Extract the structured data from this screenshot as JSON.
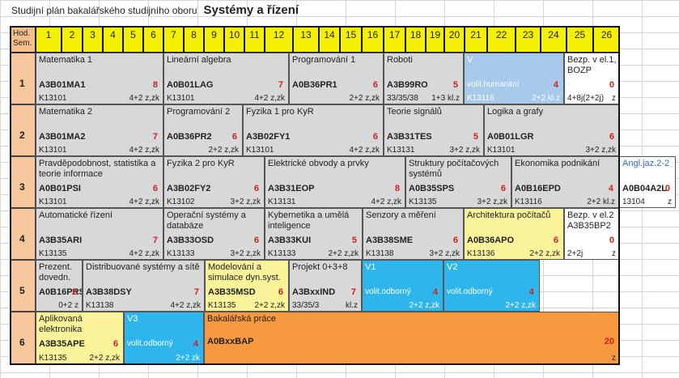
{
  "title": {
    "prefix": "Studijní plán bakalářského studijního oboru",
    "name": "Systémy a řízení"
  },
  "header": {
    "corner": "Hod.\nSem.",
    "columns": [
      "1",
      "2",
      "3",
      "4",
      "5",
      "6",
      "7",
      "8",
      "9",
      "10",
      "11",
      "12",
      "13",
      "14",
      "15",
      "16",
      "17",
      "18",
      "19",
      "20",
      "21",
      "22",
      "23",
      "24",
      "25",
      "26"
    ]
  },
  "semesters": [
    "1",
    "2",
    "3",
    "4",
    "5",
    "6"
  ],
  "courses": {
    "s1": [
      {
        "name": "Matematika 1",
        "code": "A3B01MA1",
        "credits": "8",
        "dept": "K13101",
        "hours": "4+2  z,zk"
      },
      {
        "name": "Lineární algebra",
        "code": "A0B01LAG",
        "credits": "7",
        "dept": "K13101",
        "hours": "4+2  z,zk"
      },
      {
        "name": "Programování 1",
        "code": "A0B36PR1",
        "credits": "6",
        "dept": "",
        "hours": "2+2  z,zk"
      },
      {
        "name": "Roboti",
        "code": "A3B99RO",
        "credits": "5",
        "dept": "33/35/38",
        "hours": "1+3  kl.z"
      },
      {
        "name": "V",
        "code": "volit.humanitní",
        "credits": "4",
        "dept": "K13116",
        "hours": "2+2       kl.z"
      },
      {
        "name": "Bezp. v el.1, BOZP",
        "code": "",
        "credits": "0",
        "dept": "4+8j(2+2j)",
        "hours": "z"
      }
    ],
    "s2": [
      {
        "name": "Matematika 2",
        "code": "A3B01MA2",
        "credits": "7",
        "dept": "K13101",
        "hours": "4+2  z,zk"
      },
      {
        "name": "Programování 2",
        "code": "A0B36PR2",
        "credits": "6",
        "dept": "",
        "hours": "2+2  z,zk"
      },
      {
        "name": "Fyzika 1 pro KyR",
        "code": "A3B02FY1",
        "credits": "6",
        "dept": "K13101",
        "hours": "4+2  z,zk"
      },
      {
        "name": "Teorie signálů",
        "code": "A3B31TES",
        "credits": "5",
        "dept": "K13131",
        "hours": "3+2  z,zk"
      },
      {
        "name": "Logika a grafy",
        "code": "A0B01LGR",
        "credits": "6",
        "dept": "K13101",
        "hours": "3+2  z,zk"
      }
    ],
    "s3": [
      {
        "name": "Pravděpodobnost, statistika a teorie informace",
        "code": "A0B01PSI",
        "credits": "6",
        "dept": "K13101",
        "hours": "4+2  z,zk"
      },
      {
        "name": "Fyzika 2 pro KyR",
        "code": "A3B02FY2",
        "credits": "6",
        "dept": "K13102",
        "hours": "3+2  z,zk"
      },
      {
        "name": "Elektrické obvody a prvky",
        "code": "A3B31EOP",
        "credits": "8",
        "dept": "K13131",
        "hours": "4+2  z,zk"
      },
      {
        "name": "Struktury počítačových systémů",
        "code": "A0B35SPS",
        "credits": "6",
        "dept": "K13135",
        "hours": "3+2  z,zk"
      },
      {
        "name": "Ekonomika podnikání",
        "code": "A0B16EPD",
        "credits": "4",
        "dept": "K13116",
        "hours": "2+2       kl.z"
      },
      {
        "name": "Angl.jaz.2-2",
        "code": "A0B04A2L",
        "credits": "0",
        "dept": "13104",
        "hours": "z"
      }
    ],
    "s4": [
      {
        "name": "Automatické řízení",
        "code": "A3B35ARI",
        "credits": "7",
        "dept": "K13135",
        "hours": "4+2  z,zk"
      },
      {
        "name": "Operační systémy a databáze",
        "code": "A3B33OSD",
        "credits": "6",
        "dept": "K13133",
        "hours": "3+2  z,zk"
      },
      {
        "name": "Kybernetika a umělá inteligence",
        "code": "A3B33KUI",
        "credits": "5",
        "dept": "K13133",
        "hours": "2+2  z,zk"
      },
      {
        "name": "Senzory a měření",
        "code": "A3B38SME",
        "credits": "6",
        "dept": "K13138",
        "hours": "3+2  z,zk"
      },
      {
        "name": "Architektura počítačů",
        "code": "A0B36APO",
        "credits": "6",
        "dept": "K13136",
        "hours": "2+2  z,zk"
      },
      {
        "name": "Bezp. v el.2 A3B35BP2",
        "code": "",
        "credits": "0",
        "dept": "2+2j",
        "hours": "z"
      }
    ],
    "s5": [
      {
        "name": "Prezent. dovedn.",
        "code": "A0B16PRS",
        "credits": "2",
        "dept": "",
        "hours": "0+2  z"
      },
      {
        "name": "Distribuované systémy a sítě",
        "code": "A3B38DSY",
        "credits": "7",
        "dept": "K13138",
        "hours": "4+2  z,zk"
      },
      {
        "name": "Modelování a simulace dyn.syst.",
        "code": "A3B35MSD",
        "credits": "6",
        "dept": "K13135",
        "hours": "2+2  z,zk"
      },
      {
        "name": "Projekt  0+3+8",
        "code": "A3BxxIND",
        "credits": "7",
        "dept": "33/35/3",
        "hours": "kl.z"
      },
      {
        "name": "V1",
        "code": "volit.odborný",
        "credits": "4",
        "dept": "",
        "hours": "2+2  z,zk"
      },
      {
        "name": "V2",
        "code": "volit.odborný",
        "credits": "4",
        "dept": "",
        "hours": "2+2  z,zk"
      }
    ],
    "s6": [
      {
        "name": "Aplikovaná elektronika",
        "code": "A3B35APE",
        "credits": "6",
        "dept": "K13135",
        "hours": "2+2  z,zk"
      },
      {
        "name": "V3",
        "code": "volit.odborný",
        "credits": "4",
        "dept": "",
        "hours": "2+2  zk"
      },
      {
        "name": "Bakalářská práce",
        "code": "A0BxxBAP",
        "credits": "20",
        "dept": "",
        "hours": "z"
      }
    ]
  },
  "colors": {
    "header": "#f5f000",
    "semester": "#f6c79d",
    "gray": "#d9d8d8",
    "yellow": "#fbf39a",
    "blue": "#2eb6ec",
    "lightblue": "#a7c9ea",
    "orange": "#f7993f"
  }
}
